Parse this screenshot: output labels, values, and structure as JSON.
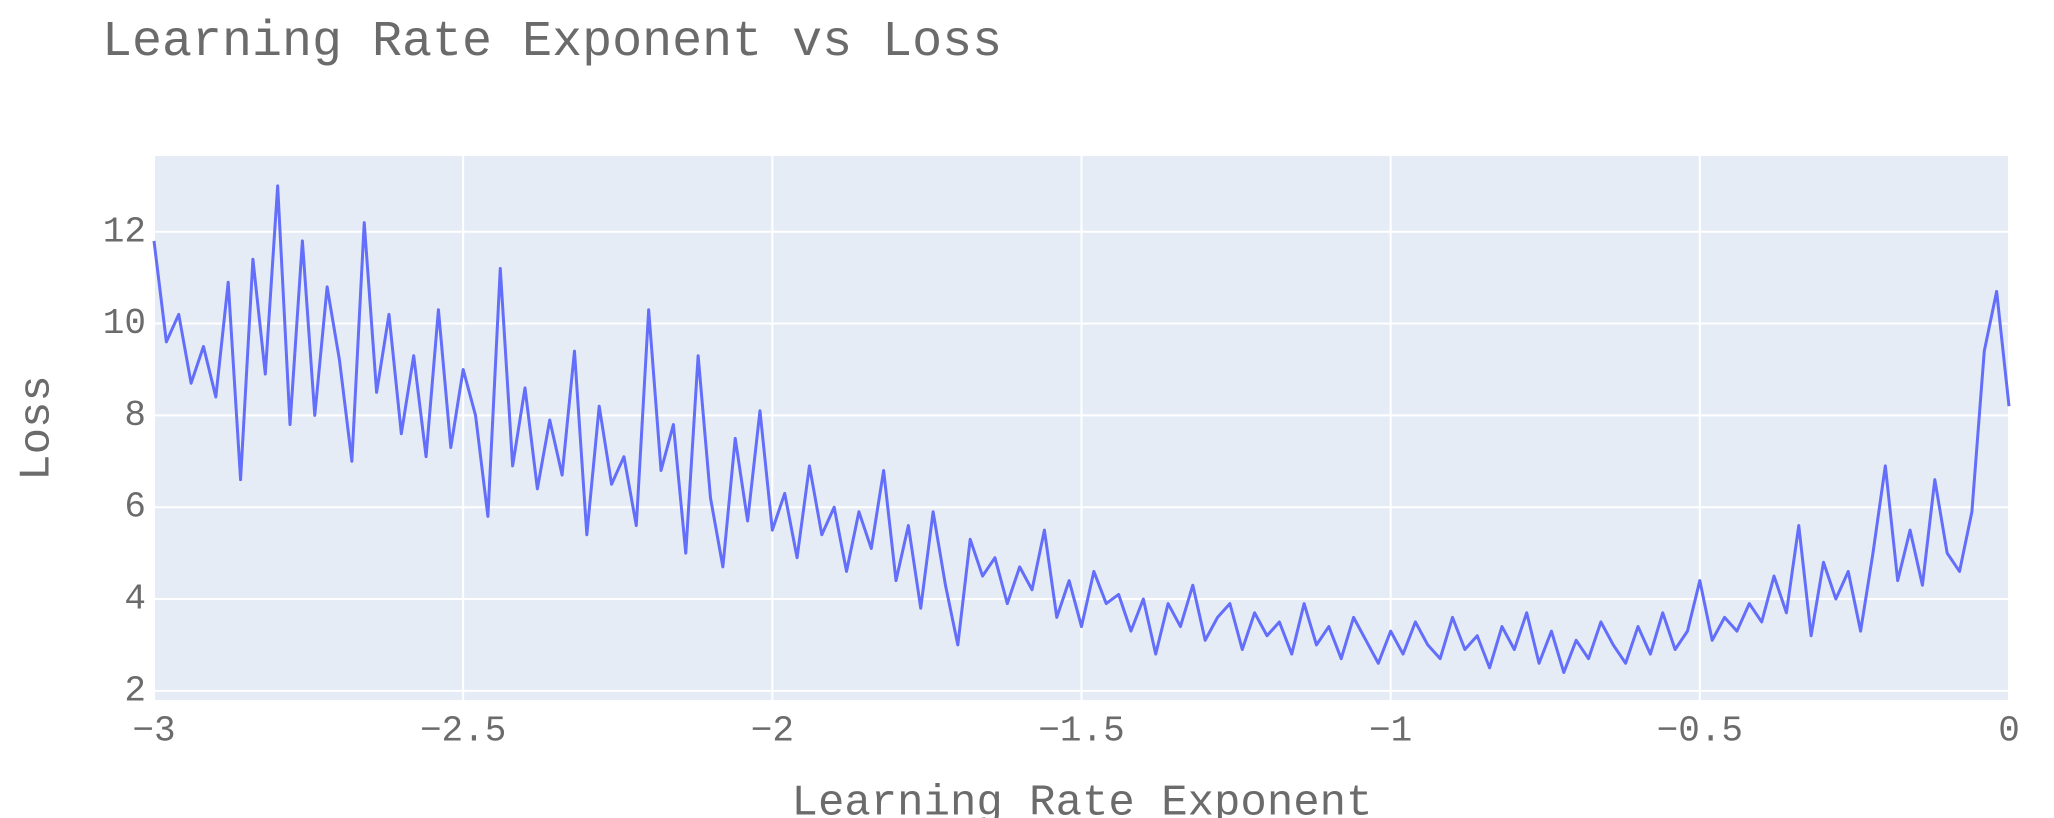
{
  "chart_data": {
    "type": "line",
    "title": "Learning Rate Exponent vs Loss",
    "x_label": "Learning Rate Exponent",
    "y_label": "Loss",
    "x": [
      -3,
      -2.98,
      -2.96,
      -2.94,
      -2.92,
      -2.9,
      -2.88,
      -2.86,
      -2.84,
      -2.82,
      -2.8,
      -2.78,
      -2.76,
      -2.74,
      -2.72,
      -2.7,
      -2.68,
      -2.66,
      -2.64,
      -2.62,
      -2.6,
      -2.58,
      -2.56,
      -2.54,
      -2.52,
      -2.5,
      -2.48,
      -2.46,
      -2.44,
      -2.42,
      -2.4,
      -2.38,
      -2.36,
      -2.34,
      -2.32,
      -2.3,
      -2.28,
      -2.26,
      -2.24,
      -2.22,
      -2.2,
      -2.18,
      -2.16,
      -2.14,
      -2.12,
      -2.1,
      -2.08,
      -2.06,
      -2.04,
      -2.02,
      -2,
      -1.98,
      -1.96,
      -1.94,
      -1.92,
      -1.9,
      -1.88,
      -1.86,
      -1.84,
      -1.82,
      -1.8,
      -1.78,
      -1.76,
      -1.74,
      -1.72,
      -1.7,
      -1.68,
      -1.66,
      -1.64,
      -1.62,
      -1.6,
      -1.58,
      -1.56,
      -1.54,
      -1.52,
      -1.5,
      -1.48,
      -1.46,
      -1.44,
      -1.42,
      -1.4,
      -1.38,
      -1.36,
      -1.34,
      -1.32,
      -1.3,
      -1.28,
      -1.26,
      -1.24,
      -1.22,
      -1.2,
      -1.18,
      -1.16,
      -1.14,
      -1.12,
      -1.1,
      -1.08,
      -1.06,
      -1.04,
      -1.02,
      -1,
      -0.98,
      -0.96,
      -0.94,
      -0.92,
      -0.9,
      -0.88,
      -0.86,
      -0.84,
      -0.82,
      -0.8,
      -0.78,
      -0.76,
      -0.74,
      -0.72,
      -0.7,
      -0.68,
      -0.66,
      -0.64,
      -0.62,
      -0.6,
      -0.58,
      -0.56,
      -0.54,
      -0.52,
      -0.5,
      -0.48,
      -0.46,
      -0.44,
      -0.42,
      -0.4,
      -0.38,
      -0.36,
      -0.34,
      -0.32,
      -0.3,
      -0.28,
      -0.26,
      -0.24,
      -0.22,
      -0.2,
      -0.18,
      -0.16,
      -0.14,
      -0.12,
      -0.1,
      -0.08,
      -0.06,
      -0.04,
      -0.02,
      0
    ],
    "series": [
      {
        "color": "#636efa",
        "values": [
          11.8,
          9.6,
          10.2,
          8.7,
          9.5,
          8.4,
          10.9,
          6.6,
          11.4,
          8.9,
          13.0,
          7.8,
          11.8,
          8.0,
          10.8,
          9.2,
          7.0,
          12.2,
          8.5,
          10.2,
          7.6,
          9.3,
          7.1,
          10.3,
          7.3,
          9.0,
          8.0,
          5.8,
          11.2,
          6.9,
          8.6,
          6.4,
          7.9,
          6.7,
          9.4,
          5.4,
          8.2,
          6.5,
          7.1,
          5.6,
          10.3,
          6.8,
          7.8,
          5.0,
          9.3,
          6.2,
          4.7,
          7.5,
          5.7,
          8.1,
          5.5,
          6.3,
          4.9,
          6.9,
          5.4,
          6.0,
          4.6,
          5.9,
          5.1,
          6.8,
          4.4,
          5.6,
          3.8,
          5.9,
          4.3,
          3.0,
          5.3,
          4.5,
          4.9,
          3.9,
          4.7,
          4.2,
          5.5,
          3.6,
          4.4,
          3.4,
          4.6,
          3.9,
          4.1,
          3.3,
          4.0,
          2.8,
          3.9,
          3.4,
          4.3,
          3.1,
          3.6,
          3.9,
          2.9,
          3.7,
          3.2,
          3.5,
          2.8,
          3.9,
          3.0,
          3.4,
          2.7,
          3.6,
          3.1,
          2.6,
          3.3,
          2.8,
          3.5,
          3.0,
          2.7,
          3.6,
          2.9,
          3.2,
          2.5,
          3.4,
          2.9,
          3.7,
          2.6,
          3.3,
          2.4,
          3.1,
          2.7,
          3.5,
          3.0,
          2.6,
          3.4,
          2.8,
          3.7,
          2.9,
          3.3,
          4.4,
          3.1,
          3.6,
          3.3,
          3.9,
          3.5,
          4.5,
          3.7,
          5.6,
          3.2,
          4.8,
          4.0,
          4.6,
          3.3,
          5.0,
          6.9,
          4.4,
          5.5,
          4.3,
          6.6,
          5.0,
          4.6,
          5.9,
          9.4,
          10.7,
          8.2
        ]
      }
    ],
    "xlim": [
      -3,
      0
    ],
    "ylim": [
      1.8,
      13.65
    ],
    "xticks": [
      {
        "value": -3,
        "label": "−3"
      },
      {
        "value": -2.5,
        "label": "−2.5"
      },
      {
        "value": -2,
        "label": "−2"
      },
      {
        "value": -1.5,
        "label": "−1.5"
      },
      {
        "value": -1,
        "label": "−1"
      },
      {
        "value": -0.5,
        "label": "−0.5"
      },
      0
    ],
    "yticks": [
      2,
      4,
      6,
      8,
      10,
      12
    ],
    "grid": true
  }
}
